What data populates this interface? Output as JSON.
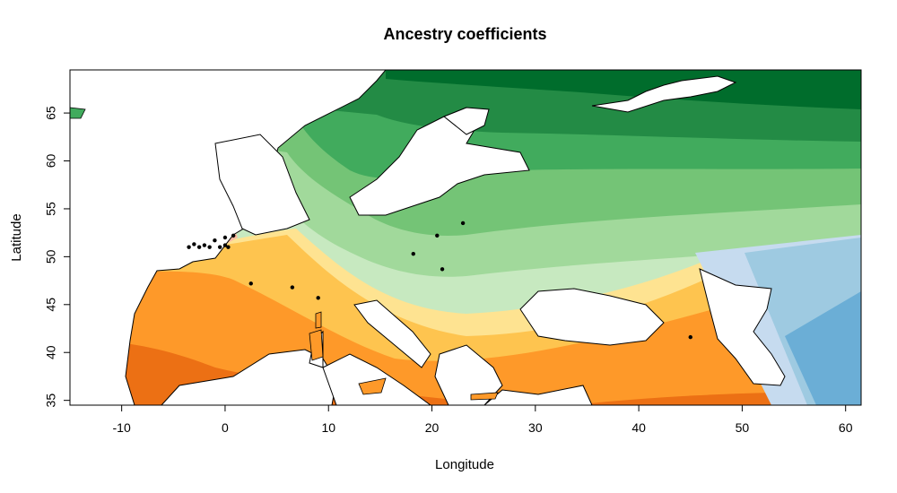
{
  "title": "Ancestry coefficients",
  "xlabel": "Longitude",
  "ylabel": "Latitude",
  "chart_data": {
    "type": "map",
    "xlim": [
      -15,
      61.5
    ],
    "ylim": [
      34.5,
      69.5
    ],
    "x_ticks": [
      -10,
      0,
      10,
      20,
      30,
      40,
      50,
      60
    ],
    "y_ticks": [
      35,
      40,
      45,
      50,
      55,
      60,
      65
    ],
    "x_tick_labels": [
      "-10",
      "0",
      "10",
      "20",
      "30",
      "40",
      "50",
      "60"
    ],
    "y_tick_labels": [
      "35",
      "40",
      "45",
      "50",
      "55",
      "60",
      "65"
    ],
    "clusters": [
      {
        "palette": "green",
        "colors": [
          "#c7e9c0",
          "#a1d99b",
          "#74c476",
          "#41ab5d",
          "#238b45",
          "#006d2c"
        ]
      },
      {
        "palette": "orange",
        "colors": [
          "#fee391",
          "#fec44f",
          "#fe9929",
          "#ec7014"
        ]
      },
      {
        "palette": "red",
        "colors": [
          "#fcbba1",
          "#fc9272",
          "#fb6a4a"
        ]
      },
      {
        "palette": "blue",
        "colors": [
          "#c6dbef",
          "#9ecae1",
          "#6baed6"
        ]
      }
    ],
    "sample_points": [
      {
        "lon": -3.5,
        "lat": 51.0
      },
      {
        "lon": -3.0,
        "lat": 51.3
      },
      {
        "lon": -2.5,
        "lat": 51.0
      },
      {
        "lon": -2.0,
        "lat": 51.2
      },
      {
        "lon": -1.5,
        "lat": 51.0
      },
      {
        "lon": -1.0,
        "lat": 51.7
      },
      {
        "lon": -0.5,
        "lat": 51.0
      },
      {
        "lon": 0.0,
        "lat": 51.2
      },
      {
        "lon": 0.3,
        "lat": 51.0
      },
      {
        "lon": 0.0,
        "lat": 52.0
      },
      {
        "lon": 0.8,
        "lat": 52.2
      },
      {
        "lon": 2.5,
        "lat": 47.2
      },
      {
        "lon": 6.5,
        "lat": 46.8
      },
      {
        "lon": 9.0,
        "lat": 45.7
      },
      {
        "lon": 18.2,
        "lat": 50.3
      },
      {
        "lon": 20.5,
        "lat": 52.2
      },
      {
        "lon": 23.0,
        "lat": 53.5
      },
      {
        "lon": 21.0,
        "lat": 48.7
      },
      {
        "lon": 45.0,
        "lat": 41.6
      }
    ]
  }
}
